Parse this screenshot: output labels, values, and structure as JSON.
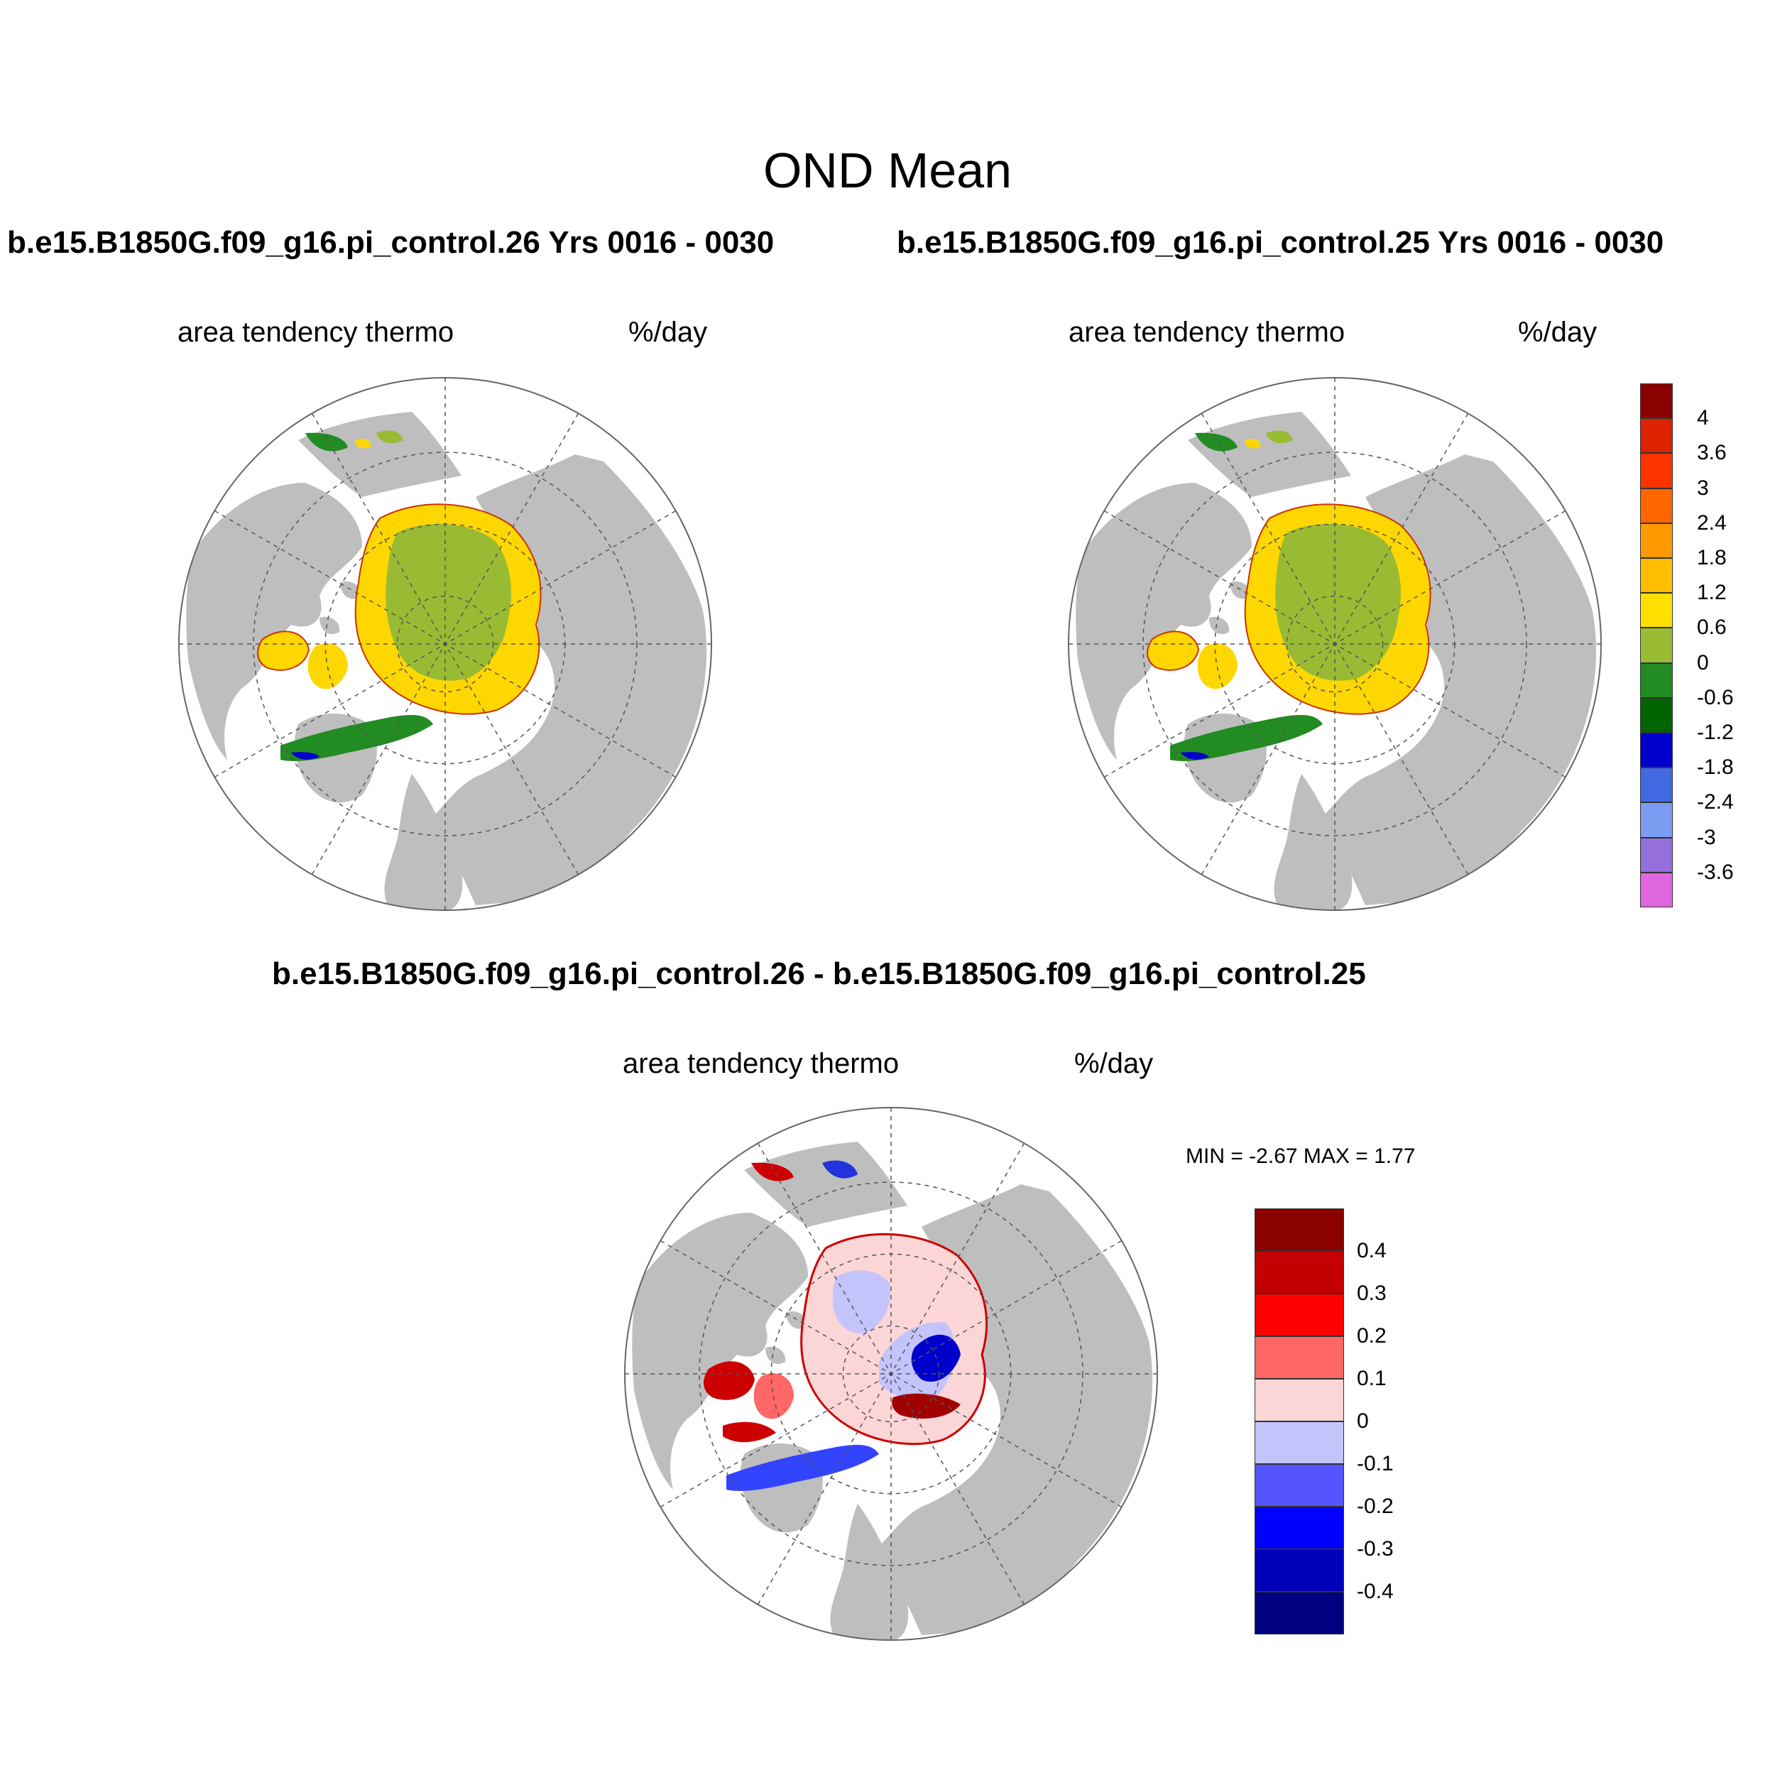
{
  "figure": {
    "title": "OND Mean",
    "panels": [
      {
        "id": "case26",
        "title": "b.e15.B1850G.f09_g16.pi_control.26  Yrs 0016 - 0030",
        "variable": "area tendency thermo",
        "units": "%/day"
      },
      {
        "id": "case25",
        "title": "b.e15.B1850G.f09_g16.pi_control.25  Yrs 0016 - 0030",
        "variable": "area tendency thermo",
        "units": "%/day"
      },
      {
        "id": "difference",
        "title": "b.e15.B1850G.f09_g16.pi_control.26 - b.e15.B1850G.f09_g16.pi_control.25",
        "variable": "area tendency thermo",
        "units": "%/day",
        "min_max": "MIN =  -2.67 MAX =   1.77"
      }
    ]
  },
  "colorbars": {
    "top": {
      "labels": [
        "4",
        "3.6",
        "3",
        "2.4",
        "1.8",
        "1.2",
        "0.6",
        "0",
        "-0.6",
        "-1.2",
        "-1.8",
        "-2.4",
        "-3",
        "-3.6"
      ],
      "colors": [
        "#8b0000",
        "#dd2200",
        "#ff3300",
        "#ff6600",
        "#ff9900",
        "#ffbf00",
        "#ffe000",
        "#99bb33",
        "#228b22",
        "#006400",
        "#0000cd",
        "#4169e1",
        "#7b9cf0",
        "#9370db",
        "#e066e0"
      ]
    },
    "diff": {
      "labels": [
        "0.4",
        "0.3",
        "0.2",
        "0.1",
        "0",
        "-0.1",
        "-0.2",
        "-0.3",
        "-0.4"
      ],
      "colors": [
        "#8b0000",
        "#c40000",
        "#ff0000",
        "#ff6666",
        "#fcd6d6",
        "#c4c4fc",
        "#5555ff",
        "#0000ff",
        "#0000bb",
        "#000080"
      ]
    }
  },
  "map_colors": {
    "land": "#bebebe",
    "ocean": "#ffffff",
    "central_ice": "#99bb33",
    "ice_edge": "#ffd700",
    "diff_pos": "#fcd6d6",
    "diff_neg": "#c4c4fc"
  }
}
